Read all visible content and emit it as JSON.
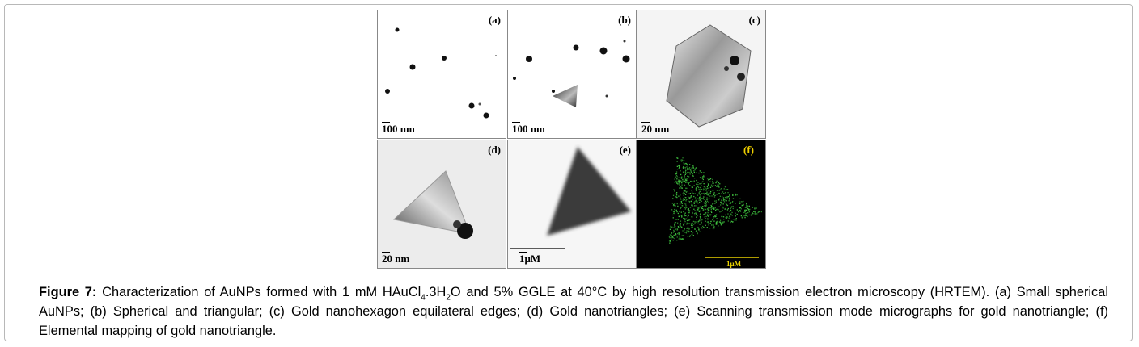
{
  "figure": {
    "panels": [
      {
        "label": "(a)",
        "scale": "100 nm"
      },
      {
        "label": "(b)",
        "scale": "100 nm"
      },
      {
        "label": "(c)",
        "scale": "20 nm"
      },
      {
        "label": "(d)",
        "scale": "20 nm"
      },
      {
        "label": "(e)",
        "scale": "1μM"
      },
      {
        "label": "(f)",
        "scale": "1μM"
      }
    ]
  },
  "caption": {
    "label": "Figure 7:",
    "parts": [
      "Characterization of AuNPs formed with 1 mM HAuCl",
      "4",
      ".3H",
      "2",
      "O and 5% GGLE at 40°C by high resolution transmission electron microscopy (HRTEM). (a) Small spherical AuNPs; (b) Spherical and triangular; (c) Gold nanohexagon equilateral edges; (d) Gold nanotriangles; (e) Scanning transmission mode micrographs for gold nanotriangle; (f) Elemental mapping of gold nanotriangle."
    ]
  }
}
